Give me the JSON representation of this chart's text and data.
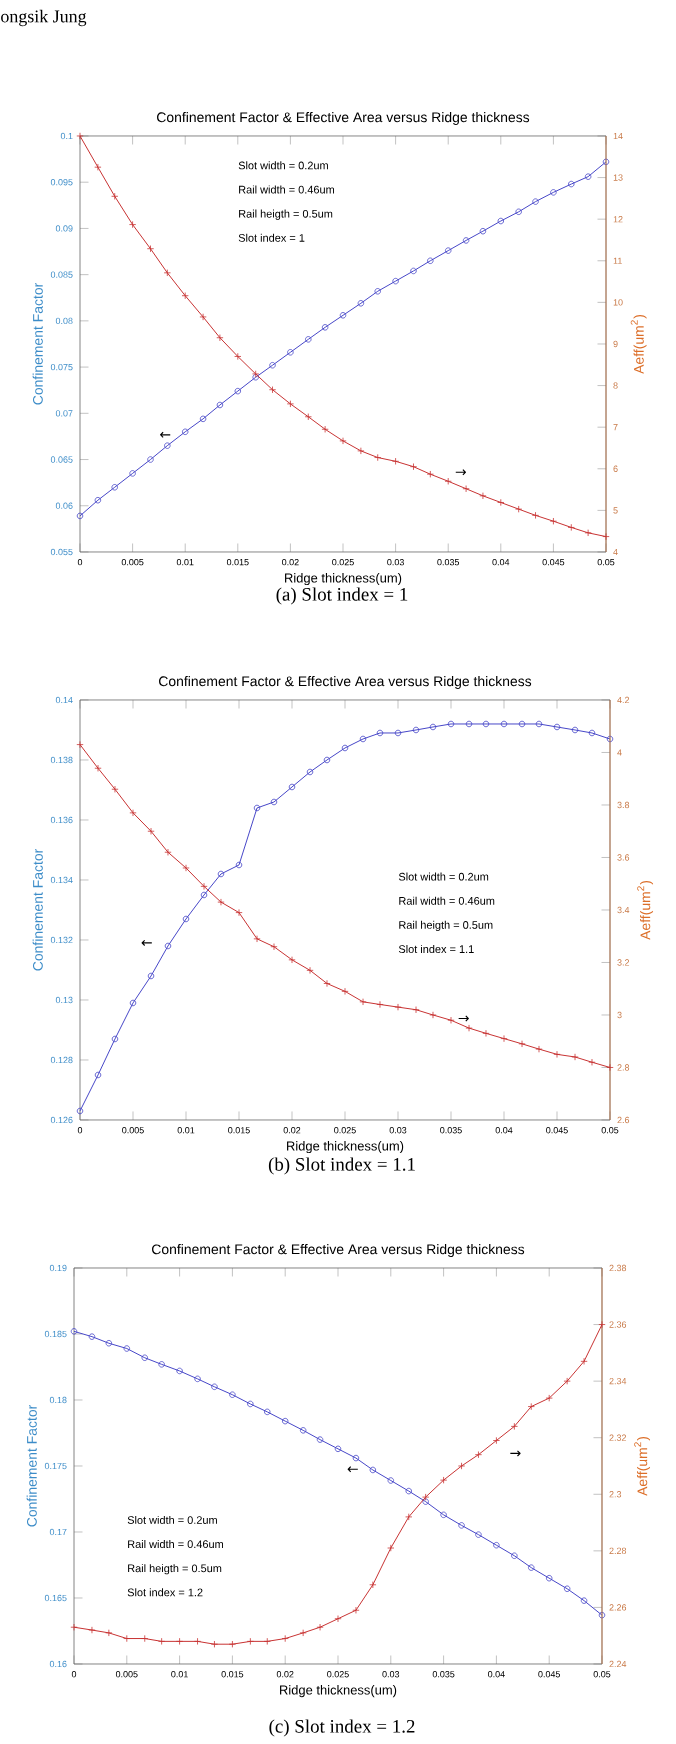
{
  "chart_data": [
    {
      "type": "line",
      "title": "Confinement Factor & Effective Area versus Ridge thickness",
      "xlabel": "Ridge thickness(um)",
      "ylabel": "Confinement Factor",
      "y2label": "Aeff(um$^{2}$)",
      "x": [
        0,
        0.0017,
        0.0033,
        0.005,
        0.0067,
        0.0083,
        0.01,
        0.0117,
        0.0133,
        0.015,
        0.0167,
        0.0183,
        0.02,
        0.0217,
        0.0233,
        0.025,
        0.0267,
        0.0283,
        0.03,
        0.0317,
        0.0333,
        0.035,
        0.0367,
        0.0383,
        0.04,
        0.0417,
        0.0433,
        0.045,
        0.0467,
        0.0483,
        0.05
      ],
      "series": [
        {
          "color": "#4646c8",
          "marker": "circle",
          "values": [
            0.0589,
            0.0606,
            0.062,
            0.0635,
            0.065,
            0.0665,
            0.068,
            0.0694,
            0.0709,
            0.0724,
            0.0739,
            0.0752,
            0.0766,
            0.078,
            0.0793,
            0.0806,
            0.0819,
            0.0832,
            0.0843,
            0.0854,
            0.0865,
            0.0876,
            0.0887,
            0.0897,
            0.0908,
            0.0918,
            0.0929,
            0.0939,
            0.0948,
            0.0956,
            0.0972
          ]
        },
        {
          "color": "#c83232",
          "marker": "cross",
          "axis": "y2",
          "values": [
            14.0,
            13.25,
            12.55,
            11.87,
            11.29,
            10.71,
            10.16,
            9.65,
            9.15,
            8.7,
            8.28,
            7.9,
            7.56,
            7.25,
            6.95,
            6.67,
            6.43,
            6.27,
            6.18,
            6.05,
            5.87,
            5.7,
            5.52,
            5.35,
            5.19,
            5.03,
            4.88,
            4.74,
            4.59,
            4.46,
            4.37
          ]
        }
      ],
      "xlim": [
        0,
        0.05
      ],
      "xticks": [
        0,
        0.005,
        0.01,
        0.015,
        0.02,
        0.025,
        0.03,
        0.035,
        0.04,
        0.045,
        0.05
      ],
      "ylim": [
        0.055,
        0.1
      ],
      "yticks": [
        0.055,
        0.06,
        0.065,
        0.07,
        0.075,
        0.08,
        0.085,
        0.09,
        0.095,
        0.1
      ],
      "y2lim": [
        4,
        14
      ],
      "y2ticks": [
        4,
        5,
        6,
        7,
        8,
        9,
        10,
        11,
        12,
        13,
        14
      ],
      "annotations": [
        "Slot width = 0.2um",
        "Rail width = 0.46um",
        "Rail heigth = 0.5um",
        "Slot index = 1",
        "(a) Slot index = 1",
        "←",
        "→",
        "ongsik  Jung"
      ]
    },
    {
      "type": "line",
      "title": "Confinement Factor & Effective Area versus Ridge thickness",
      "xlabel": "Ridge thickness(um)",
      "ylabel": "Confinement Factor",
      "y2label": "Aeff(um$^{2}$)",
      "x": [
        0,
        0.0017,
        0.0033,
        0.005,
        0.0067,
        0.0083,
        0.01,
        0.0117,
        0.0133,
        0.015,
        0.0167,
        0.0183,
        0.02,
        0.0217,
        0.0233,
        0.025,
        0.0267,
        0.0283,
        0.03,
        0.0317,
        0.0333,
        0.035,
        0.0367,
        0.0383,
        0.04,
        0.0417,
        0.0433,
        0.045,
        0.0467,
        0.0483,
        0.05
      ],
      "series": [
        {
          "color": "#4646c8",
          "marker": "circle",
          "values": [
            0.1263,
            0.1275,
            0.1287,
            0.1299,
            0.1308,
            0.1318,
            0.1327,
            0.1335,
            0.1342,
            0.1345,
            0.1364,
            0.1366,
            0.1371,
            0.1376,
            0.138,
            0.1384,
            0.1387,
            0.1389,
            0.1389,
            0.139,
            0.1391,
            0.1392,
            0.1392,
            0.1392,
            0.1392,
            0.1392,
            0.1392,
            0.1391,
            0.139,
            0.1389,
            0.1387
          ]
        },
        {
          "color": "#c83232",
          "marker": "cross",
          "axis": "y2",
          "values": [
            4.03,
            3.94,
            3.86,
            3.77,
            3.7,
            3.62,
            3.56,
            3.49,
            3.43,
            3.39,
            3.29,
            3.26,
            3.21,
            3.17,
            3.12,
            3.09,
            3.05,
            3.04,
            3.03,
            3.02,
            3.0,
            2.98,
            2.95,
            2.93,
            2.91,
            2.89,
            2.87,
            2.85,
            2.84,
            2.82,
            2.8
          ]
        }
      ],
      "xlim": [
        0,
        0.05
      ],
      "xticks": [
        0,
        0.005,
        0.01,
        0.015,
        0.02,
        0.025,
        0.03,
        0.035,
        0.04,
        0.045,
        0.05
      ],
      "ylim": [
        0.126,
        0.14
      ],
      "yticks": [
        0.126,
        0.128,
        0.13,
        0.132,
        0.134,
        0.136,
        0.138,
        0.14
      ],
      "y2lim": [
        2.6,
        4.2
      ],
      "y2ticks": [
        2.6,
        2.8,
        3,
        3.2,
        3.4,
        3.6,
        3.8,
        4,
        4.2
      ],
      "annotations": [
        "Slot width = 0.2um",
        "Rail width = 0.46um",
        "Rail heigth = 0.5um",
        "Slot index = 1.1",
        "(b) Slot index = 1.1",
        "←",
        "→"
      ]
    },
    {
      "type": "line",
      "title": "Confinement Factor & Effective Area versus Ridge thickness",
      "xlabel": "Ridge thickness(um)",
      "ylabel": "Confinement Factor",
      "y2label": "Aeff(um$^{2}$)",
      "x": [
        0,
        0.0017,
        0.0033,
        0.005,
        0.0067,
        0.0083,
        0.01,
        0.0117,
        0.0133,
        0.015,
        0.0167,
        0.0183,
        0.02,
        0.0217,
        0.0233,
        0.025,
        0.0267,
        0.0283,
        0.03,
        0.0317,
        0.0333,
        0.035,
        0.0367,
        0.0383,
        0.04,
        0.0417,
        0.0433,
        0.045,
        0.0467,
        0.0483,
        0.05
      ],
      "series": [
        {
          "color": "#4646c8",
          "marker": "circle",
          "values": [
            0.1852,
            0.1848,
            0.1843,
            0.1839,
            0.1832,
            0.1827,
            0.1822,
            0.1816,
            0.181,
            0.1804,
            0.1797,
            0.1791,
            0.1784,
            0.1777,
            0.177,
            0.1763,
            0.1756,
            0.1747,
            0.1739,
            0.1731,
            0.1723,
            0.1713,
            0.1705,
            0.1698,
            0.169,
            0.1682,
            0.1673,
            0.1665,
            0.1657,
            0.1648,
            0.1637
          ]
        },
        {
          "color": "#c83232",
          "marker": "cross",
          "axis": "y2",
          "values": [
            2.253,
            2.252,
            2.251,
            2.249,
            2.249,
            2.248,
            2.248,
            2.248,
            2.247,
            2.247,
            2.248,
            2.248,
            2.249,
            2.251,
            2.253,
            2.256,
            2.259,
            2.268,
            2.281,
            2.292,
            2.299,
            2.305,
            2.31,
            2.314,
            2.319,
            2.324,
            2.331,
            2.334,
            2.34,
            2.347,
            2.36
          ]
        }
      ],
      "xlim": [
        0,
        0.05
      ],
      "xticks": [
        0,
        0.005,
        0.01,
        0.015,
        0.02,
        0.025,
        0.03,
        0.035,
        0.04,
        0.045,
        0.05
      ],
      "ylim": [
        0.16,
        0.19
      ],
      "yticks": [
        0.16,
        0.165,
        0.17,
        0.175,
        0.18,
        0.185,
        0.19
      ],
      "y2lim": [
        2.24,
        2.38
      ],
      "y2ticks": [
        2.24,
        2.26,
        2.28,
        2.3,
        2.32,
        2.34,
        2.36,
        2.38
      ],
      "annotations": [
        "Slot width = 0.2um",
        "Rail width = 0.46um",
        "Rail heigth = 0.5um",
        "Slot index = 1.2",
        "(c) Slot index = 1.2",
        "←",
        "→"
      ]
    }
  ]
}
